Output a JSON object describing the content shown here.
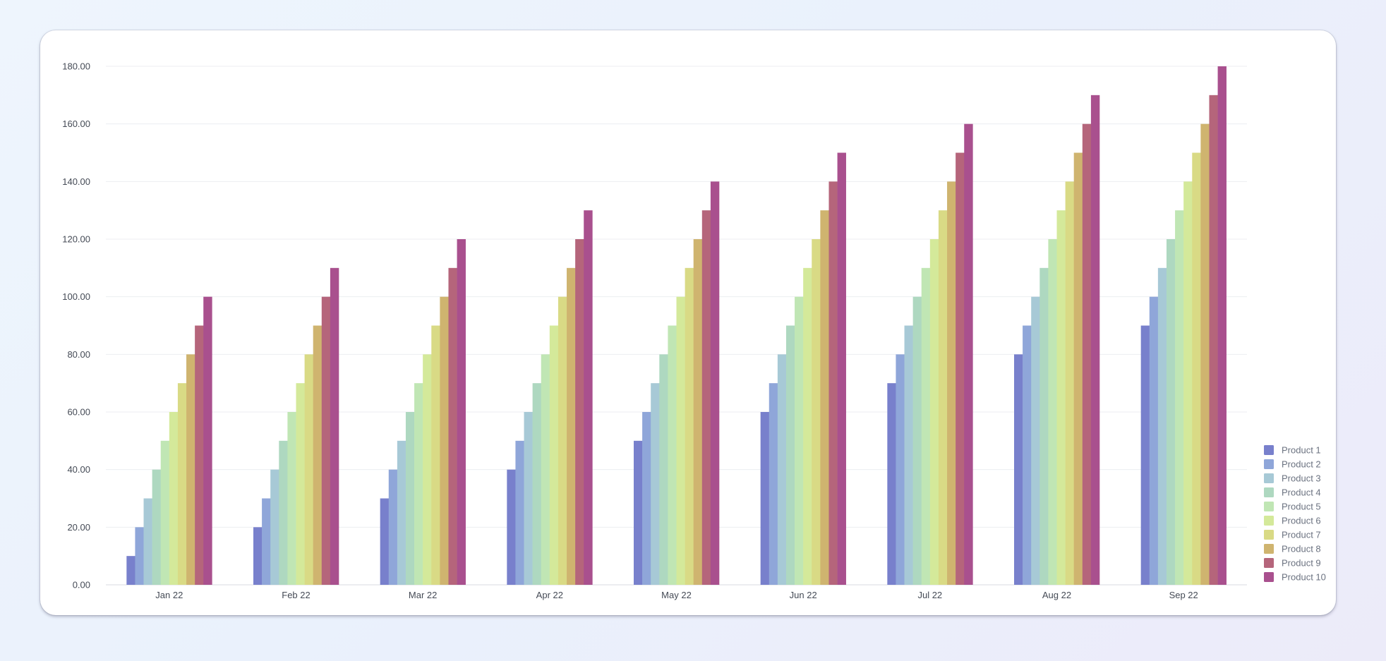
{
  "chart_data": {
    "type": "bar",
    "title": "",
    "xlabel": "",
    "ylabel": "",
    "ylim": [
      0,
      180
    ],
    "y_ticks": [
      "0.00",
      "20.00",
      "40.00",
      "60.00",
      "80.00",
      "100.00",
      "120.00",
      "140.00",
      "160.00",
      "180.00"
    ],
    "grid": true,
    "legend_position": "bottom-right",
    "categories": [
      "Jan 22",
      "Feb 22",
      "Mar 22",
      "Apr 22",
      "May 22",
      "Jun 22",
      "Jul 22",
      "Aug 22",
      "Sep 22"
    ],
    "series": [
      {
        "name": "Product 1",
        "color": "#7880cc",
        "values": [
          10,
          20,
          30,
          40,
          50,
          60,
          70,
          80,
          90
        ]
      },
      {
        "name": "Product 2",
        "color": "#8fa6d9",
        "values": [
          20,
          30,
          40,
          50,
          60,
          70,
          80,
          90,
          100
        ]
      },
      {
        "name": "Product 3",
        "color": "#a7c9d6",
        "values": [
          30,
          40,
          50,
          60,
          70,
          80,
          90,
          100,
          110
        ]
      },
      {
        "name": "Product 4",
        "color": "#aed8c0",
        "values": [
          40,
          50,
          60,
          70,
          80,
          90,
          100,
          110,
          120
        ]
      },
      {
        "name": "Product 5",
        "color": "#c0e6b4",
        "values": [
          50,
          60,
          70,
          80,
          90,
          100,
          110,
          120,
          130
        ]
      },
      {
        "name": "Product 6",
        "color": "#d4e99a",
        "values": [
          60,
          70,
          80,
          90,
          100,
          110,
          120,
          130,
          140
        ]
      },
      {
        "name": "Product 7",
        "color": "#d9da85",
        "values": [
          70,
          80,
          90,
          100,
          110,
          120,
          130,
          140,
          150
        ]
      },
      {
        "name": "Product 8",
        "color": "#cfb46f",
        "values": [
          80,
          90,
          100,
          110,
          120,
          130,
          140,
          150,
          160
        ]
      },
      {
        "name": "Product 9",
        "color": "#b5657b",
        "values": [
          90,
          100,
          110,
          120,
          130,
          140,
          150,
          160,
          170
        ]
      },
      {
        "name": "Product 10",
        "color": "#a9508e",
        "values": [
          100,
          110,
          120,
          130,
          140,
          150,
          160,
          170,
          180
        ]
      }
    ]
  }
}
